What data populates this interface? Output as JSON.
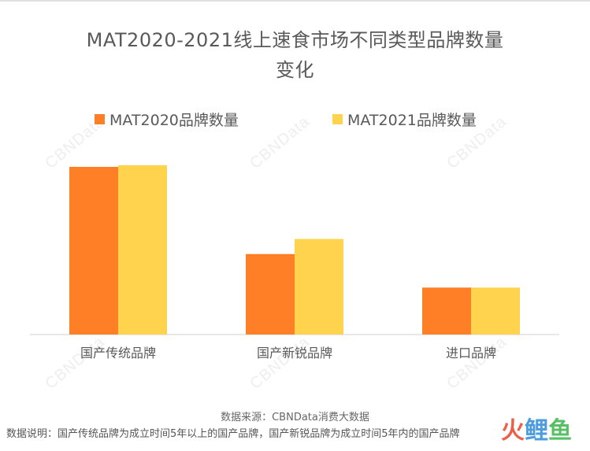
{
  "chart_data": {
    "type": "bar",
    "title_line1": "MAT2020-2021线上速食市场不同类型品牌数量",
    "title_line2": "变化",
    "categories": [
      "国产传统品牌",
      "国产新锐品牌",
      "进口品牌"
    ],
    "series": [
      {
        "name": "MAT2020品牌数量",
        "color": "#FF7F27",
        "values": [
          100,
          48,
          28
        ]
      },
      {
        "name": "MAT2021品牌数量",
        "color": "#FFD34E",
        "values": [
          101,
          57,
          28
        ]
      }
    ],
    "ylim": [
      0,
      110
    ],
    "grid": false,
    "legend_position": "top"
  },
  "watermark_text": "CBNData",
  "footer": {
    "source": "数据来源：CBNData消费大数据",
    "note": "数据说明：国产传统品牌为成立时间5年以上的国产品牌，国产新锐品牌为成立时间5年内的国产品牌"
  },
  "logo": {
    "chars": [
      "火",
      "鲤",
      "鱼"
    ],
    "colors": [
      "#E8452C",
      "#2E8BD8",
      "#3DB54A"
    ]
  }
}
